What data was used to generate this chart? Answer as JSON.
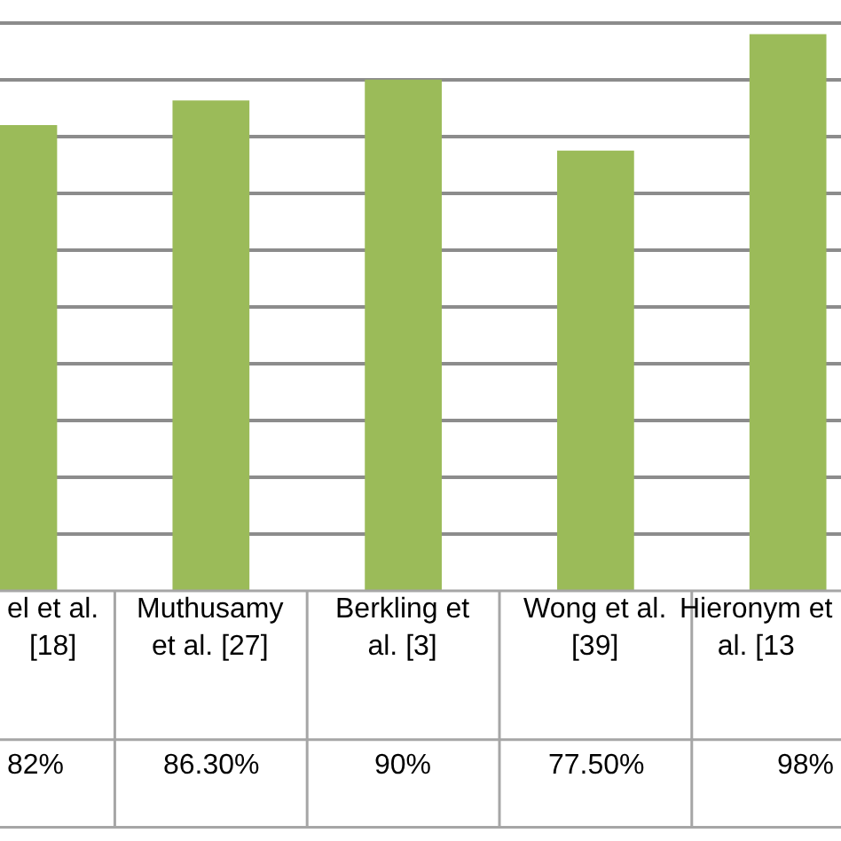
{
  "chart_data": {
    "type": "bar",
    "categories": [
      "el et al. [18]",
      "Muthusamy et al. [27]",
      "Berkling et al. [3]",
      "Wong et al. [39]",
      "Hieronym et al. [13"
    ],
    "values": [
      82,
      86.3,
      90,
      77.5,
      98
    ],
    "value_labels": [
      "82%",
      "86.30%",
      "90%",
      "77.50%",
      "98%"
    ],
    "color": "#9bbb59",
    "ylim": [
      0,
      104
    ],
    "yticks": [
      {
        "value": 0,
        "label": null
      },
      {
        "value": 10,
        "label": null
      },
      {
        "value": 20,
        "label": null
      },
      {
        "value": 30,
        "label": null
      },
      {
        "value": 40,
        "label": null
      },
      {
        "value": 50,
        "label": null
      },
      {
        "value": 60,
        "label": null
      },
      {
        "value": 70,
        "label": null
      },
      {
        "value": 80,
        "label": null
      },
      {
        "value": 90,
        "label": null
      },
      {
        "value": 100,
        "label": null
      }
    ],
    "grid": "y",
    "tick_labels": false,
    "legend": false
  }
}
